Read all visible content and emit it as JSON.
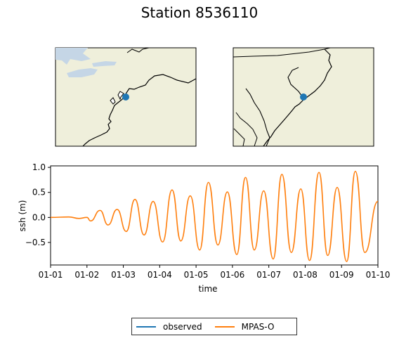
{
  "chart_data": {
    "type": "line",
    "title": "Station 8536110",
    "xlabel": "time",
    "ylabel": "ssh (m)",
    "x_ticks": [
      "01-01",
      "01-02",
      "01-03",
      "01-04",
      "01-05",
      "01-06",
      "01-07",
      "01-08",
      "01-09",
      "01-10"
    ],
    "y_ticks": [
      -0.5,
      0.0,
      0.5,
      1.0
    ],
    "xlim_days": [
      0,
      9
    ],
    "ylim": [
      -0.95,
      1.03
    ],
    "legend_location": "bottom-center, outside axes",
    "series": [
      {
        "name": "observed",
        "color": "#1f77b4",
        "points": []
      },
      {
        "name": "MPAS-O",
        "color": "#ff7f0e",
        "points": [
          [
            0.0,
            0.0
          ],
          [
            0.5,
            0.01
          ],
          [
            0.78,
            -0.02
          ],
          [
            1.0,
            0.0
          ],
          [
            1.1,
            -0.07
          ],
          [
            1.36,
            0.14
          ],
          [
            1.58,
            -0.15
          ],
          [
            1.83,
            0.16
          ],
          [
            2.08,
            -0.28
          ],
          [
            2.32,
            0.36
          ],
          [
            2.57,
            -0.35
          ],
          [
            2.82,
            0.32
          ],
          [
            3.08,
            -0.49
          ],
          [
            3.34,
            0.55
          ],
          [
            3.58,
            -0.47
          ],
          [
            3.84,
            0.43
          ],
          [
            4.1,
            -0.65
          ],
          [
            4.34,
            0.7
          ],
          [
            4.6,
            -0.55
          ],
          [
            4.86,
            0.51
          ],
          [
            5.12,
            -0.74
          ],
          [
            5.36,
            0.8
          ],
          [
            5.6,
            -0.65
          ],
          [
            5.86,
            0.53
          ],
          [
            6.12,
            -0.83
          ],
          [
            6.36,
            0.86
          ],
          [
            6.62,
            -0.7
          ],
          [
            6.88,
            0.57
          ],
          [
            7.12,
            -0.86
          ],
          [
            7.38,
            0.9
          ],
          [
            7.62,
            -0.76
          ],
          [
            7.88,
            0.6
          ],
          [
            8.14,
            -0.88
          ],
          [
            8.38,
            0.92
          ],
          [
            8.64,
            -0.7
          ],
          [
            9.0,
            0.32
          ]
        ]
      }
    ]
  },
  "maps": [
    {
      "name": "regional-map",
      "station_marker_color": "#1f77b4"
    },
    {
      "name": "zoomed-map",
      "station_marker_color": "#1f77b4"
    }
  ],
  "colors": {
    "land": "#efefdb",
    "water": "#c5d6e6",
    "coast": "#000000"
  }
}
